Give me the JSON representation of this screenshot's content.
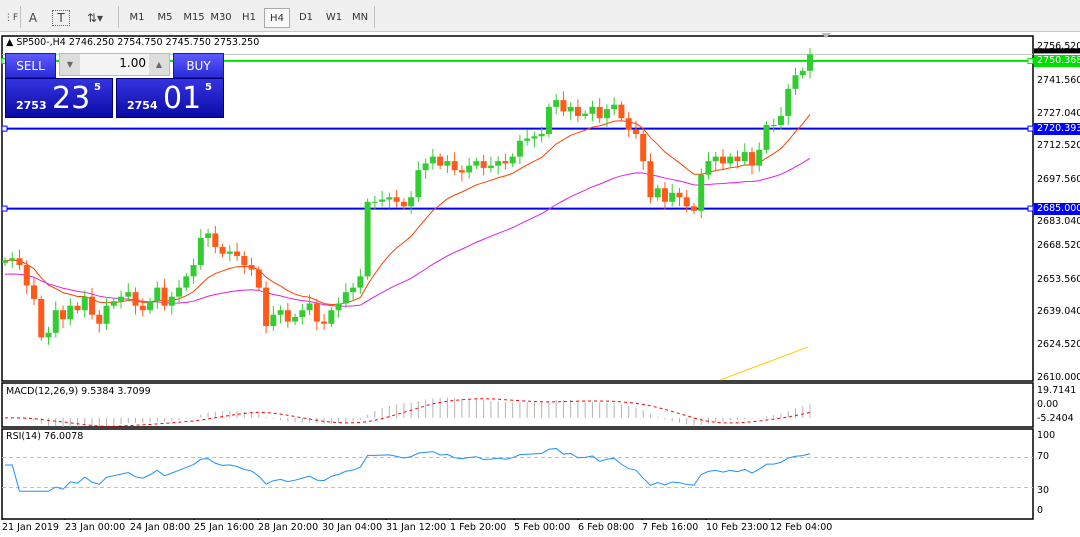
{
  "toolbar": {
    "icons": [
      "properties-icon",
      "text-icon",
      "text-label-icon",
      "arrows-icon"
    ],
    "text_label": "A",
    "label_label": "T",
    "timeframes": [
      "M1",
      "M5",
      "M15",
      "M30",
      "H1",
      "H4",
      "D1",
      "W1",
      "MN"
    ],
    "selected_timeframe": "H4"
  },
  "chart": {
    "header": "SP500-,H4  2746.250 2754.750 2745.750 2753.250",
    "price_axis": [
      "2756.520",
      "2741.560",
      "2727.040",
      "2712.520",
      "2697.560",
      "2683.040",
      "2668.520",
      "2653.560",
      "2639.040",
      "2624.520",
      "2610.000"
    ],
    "price_ticks": [
      2756.52,
      2741.56,
      2727.04,
      2712.52,
      2697.56,
      2683.04,
      2668.52,
      2653.56,
      2639.04,
      2624.52,
      2610.0
    ],
    "current_price": "2753.250",
    "hlines": [
      {
        "value": 2750.368,
        "label": "2750.368",
        "color": "#00e000"
      },
      {
        "value": 2720.393,
        "label": "2720.393",
        "color": "#0000ff"
      },
      {
        "value": 2685.0,
        "label": "2685.000",
        "color": "#0000ff"
      }
    ],
    "time_axis": [
      "21 Jan 2019",
      "23 Jan 00:00",
      "24 Jan 08:00",
      "25 Jan 16:00",
      "28 Jan 20:00",
      "30 Jan 04:00",
      "31 Jan 12:00",
      "1 Feb 20:00",
      "5 Feb 00:00",
      "6 Feb 08:00",
      "7 Feb 16:00",
      "10 Feb 23:00",
      "12 Feb 04:00"
    ]
  },
  "trade_panel": {
    "sell_label": "SELL",
    "buy_label": "BUY",
    "volume": "1.00",
    "sell_big": "2753",
    "sell_main": "23",
    "sell_sup": "5",
    "buy_big": "2754",
    "buy_main": "01",
    "buy_sup": "5"
  },
  "macd": {
    "label": "MACD(12,26,9) 9.5384 3.7099",
    "axis_top": "19.7141",
    "axis_zero": "0.00",
    "axis_bottom": "-5.2404"
  },
  "rsi": {
    "label": "RSI(14) 76.0078",
    "levels": [
      "100",
      "70",
      "30",
      "0"
    ]
  },
  "chart_data": {
    "type": "candlestick",
    "symbol": "SP500-",
    "timeframe": "H4",
    "ylim": [
      2610.0,
      2756.52
    ],
    "close": [
      2662,
      2663,
      2660,
      2651,
      2645,
      2628,
      2630,
      2640,
      2636,
      2642,
      2640,
      2646,
      2638,
      2634,
      2642,
      2644,
      2646,
      2648,
      2642,
      2640,
      2644,
      2650,
      2642,
      2646,
      2650,
      2655,
      2660,
      2672,
      2674,
      2668,
      2665,
      2666,
      2664,
      2660,
      2658,
      2650,
      2633,
      2638,
      2640,
      2635,
      2637,
      2640,
      2643,
      2635,
      2634,
      2640,
      2643,
      2648,
      2650,
      2655,
      2688,
      2688,
      2689,
      2690,
      2688,
      2686,
      2690,
      2702,
      2705,
      2708,
      2704,
      2706,
      2702,
      2701,
      2704,
      2706,
      2703,
      2704,
      2706,
      2705,
      2708,
      2715,
      2716,
      2717,
      2718,
      2730,
      2733,
      2728,
      2730,
      2726,
      2727,
      2730,
      2725,
      2729,
      2731,
      2725,
      2720,
      2718,
      2706,
      2690,
      2694,
      2688,
      2692,
      2690,
      2686,
      2684,
      2700,
      2706,
      2708,
      2705,
      2708,
      2706,
      2710,
      2704,
      2711,
      2722,
      2722,
      2726,
      2738,
      2744,
      2746,
      2753.25
    ],
    "colors": {
      "up": "#33cc33",
      "down": "#ff5a1a",
      "ma_fast": "#ff4000",
      "ma_slow": "#e020e0",
      "ma_long": "#ffcc00",
      "macd_hist": "#b4b4b4",
      "macd_signal": "#ff0000",
      "rsi": "#1e90ff"
    },
    "ma_long_points": [
      2609.1,
      2623.7
    ],
    "rsi_levels": [
      70,
      30
    ],
    "macd_ylim": [
      -5.2404,
      19.7141
    ]
  }
}
